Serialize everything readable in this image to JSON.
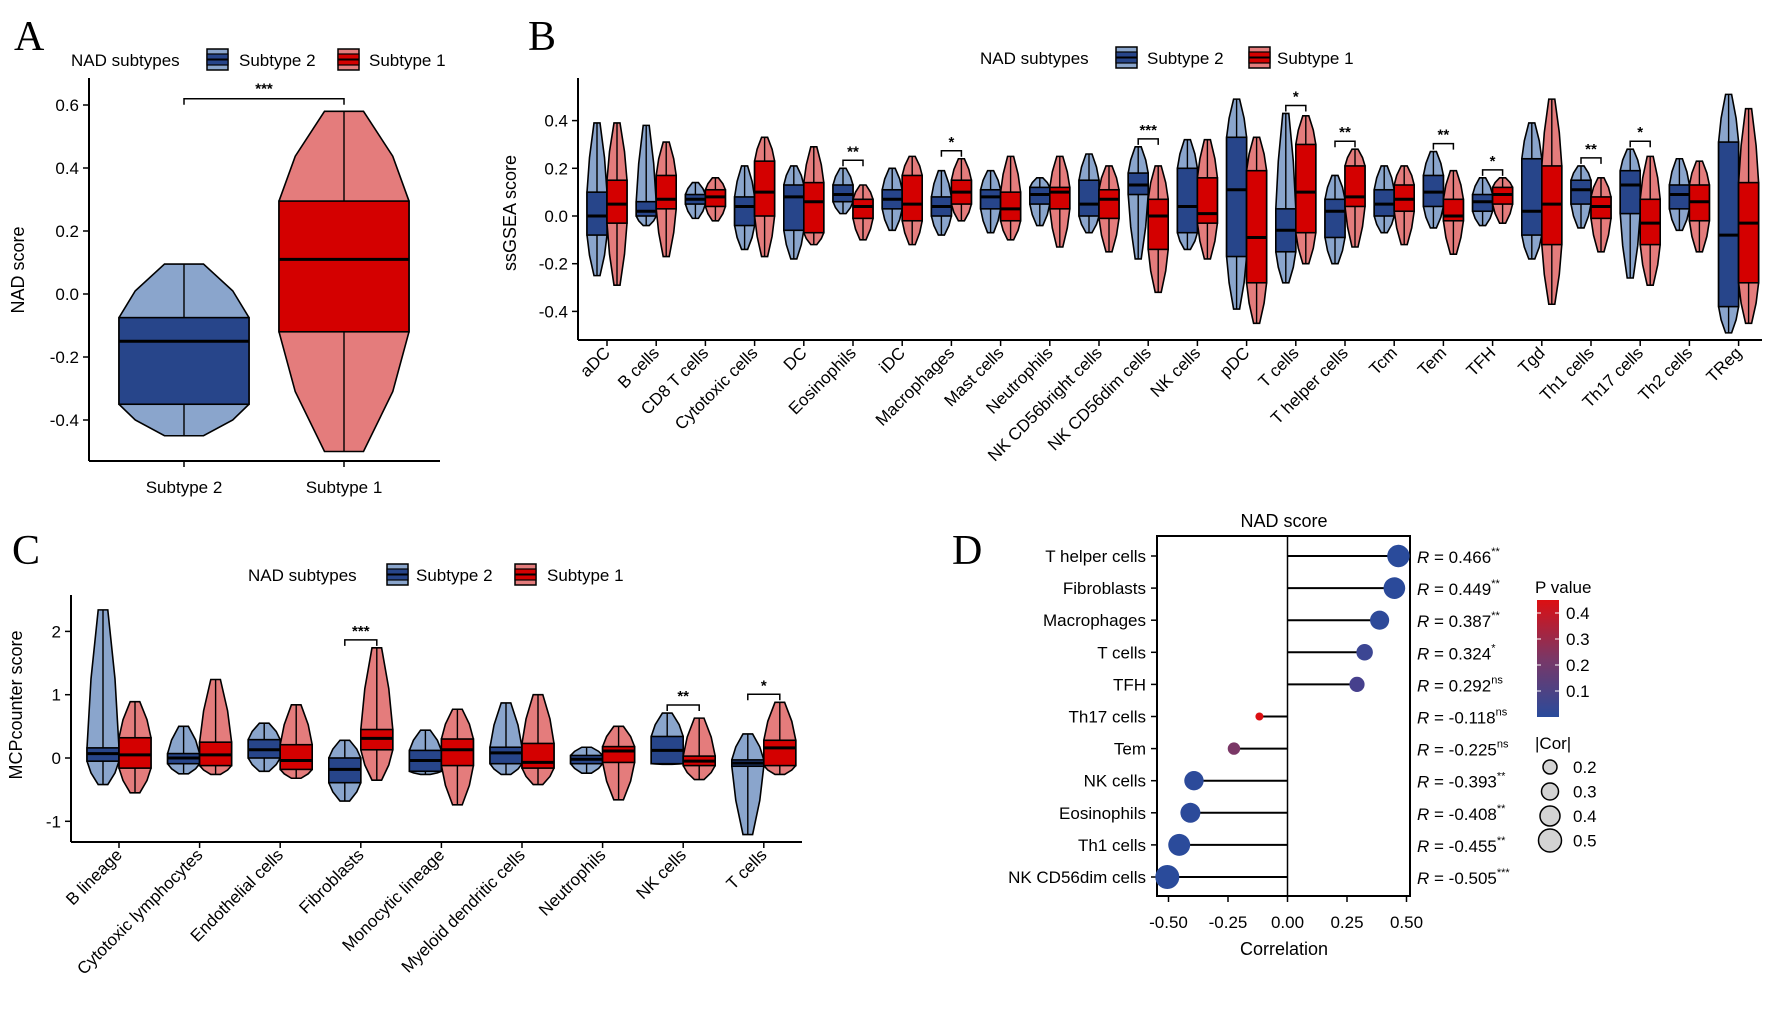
{
  "panel_labels": {
    "A": "A",
    "B": "B",
    "C": "C",
    "D": "D"
  },
  "legend": {
    "title": "NAD subtypes",
    "items": [
      "Subtype 2",
      "Subtype 1"
    ]
  },
  "colors": {
    "Subtype 2": {
      "dark": "#27458a",
      "light": "#8aa5cc"
    },
    "Subtype 1": {
      "dark": "#d40000",
      "light": "#e47c7c"
    },
    "p_low": "#2a4b9b",
    "p_high": "#dc0f12",
    "size_legend_fill": "#d3d3d3"
  },
  "chart_data": [
    {
      "panel": "A",
      "type": "box-violin",
      "ylabel": "NAD score",
      "yticks": [
        "0.6",
        "0.4",
        "0.2",
        "0.0",
        "-0.2",
        "-0.4"
      ],
      "ylim": [
        -0.5,
        0.65
      ],
      "categories": [
        "Subtype 2",
        "Subtype 1"
      ],
      "series": [
        {
          "name": "Subtype 2",
          "stats": [
            [
              -0.45,
              -0.35,
              -0.15,
              -0.075,
              0.095
            ],
            null
          ]
        },
        {
          "name": "Subtype 1",
          "stats": [
            null,
            [
              -0.5,
              -0.12,
              0.11,
              0.295,
              0.58
            ]
          ]
        }
      ],
      "significance": [
        {
          "between": [
            "Subtype 2",
            "Subtype 1"
          ],
          "label": "***"
        }
      ]
    },
    {
      "panel": "B",
      "type": "box-violin",
      "ylabel": "ssGSEA score",
      "yticks": [
        "0.4",
        "0.2",
        "0.0",
        "-0.2",
        "-0.4"
      ],
      "ylim": [
        -0.52,
        0.58
      ],
      "categories": [
        "aDC",
        "B cells",
        "CD8 T cells",
        "Cytotoxic cells",
        "DC",
        "Eosinophils",
        "iDC",
        "Macrophages",
        "Mast cells",
        "Neutrophils",
        "NK CD56bright cells",
        "NK CD56dim cells",
        "NK cells",
        "pDC",
        "T cells",
        "T helper cells",
        "Tcm",
        "Tem",
        "TFH",
        "Tgd",
        "Th1 cells",
        "Th17 cells",
        "Th2 cells",
        "TReg"
      ],
      "series": [
        {
          "name": "Subtype 2",
          "stats": [
            [
              -0.25,
              -0.08,
              0.0,
              0.1,
              0.39
            ],
            [
              -0.04,
              0.0,
              0.02,
              0.06,
              0.38
            ],
            [
              -0.01,
              0.05,
              0.07,
              0.09,
              0.14
            ],
            [
              -0.14,
              -0.04,
              0.04,
              0.08,
              0.21
            ],
            [
              -0.18,
              -0.06,
              0.08,
              0.13,
              0.21
            ],
            [
              0.01,
              0.06,
              0.09,
              0.13,
              0.2
            ],
            [
              -0.06,
              0.03,
              0.07,
              0.11,
              0.2
            ],
            [
              -0.08,
              0.0,
              0.04,
              0.08,
              0.19
            ],
            [
              -0.07,
              0.03,
              0.08,
              0.11,
              0.19
            ],
            [
              -0.04,
              0.05,
              0.09,
              0.12,
              0.16
            ],
            [
              -0.07,
              0.0,
              0.05,
              0.15,
              0.26
            ],
            [
              -0.18,
              0.09,
              0.13,
              0.18,
              0.29
            ],
            [
              -0.14,
              -0.07,
              0.04,
              0.2,
              0.32
            ],
            [
              -0.39,
              -0.17,
              0.11,
              0.33,
              0.49
            ],
            [
              -0.28,
              -0.15,
              -0.06,
              0.03,
              0.43
            ],
            [
              -0.2,
              -0.09,
              0.02,
              0.07,
              0.17
            ],
            [
              -0.07,
              0.0,
              0.05,
              0.11,
              0.21
            ],
            [
              -0.05,
              0.04,
              0.1,
              0.17,
              0.27
            ],
            [
              -0.04,
              0.02,
              0.06,
              0.09,
              0.16
            ],
            [
              -0.18,
              -0.08,
              0.02,
              0.24,
              0.39
            ],
            [
              -0.05,
              0.05,
              0.11,
              0.15,
              0.21
            ],
            [
              -0.26,
              0.01,
              0.13,
              0.19,
              0.28
            ],
            [
              -0.06,
              0.03,
              0.09,
              0.13,
              0.24
            ],
            [
              -0.49,
              -0.38,
              -0.08,
              0.31,
              0.51
            ]
          ]
        },
        {
          "name": "Subtype 1",
          "stats": [
            [
              -0.29,
              -0.03,
              0.05,
              0.15,
              0.39
            ],
            [
              -0.17,
              0.03,
              0.07,
              0.17,
              0.31
            ],
            [
              -0.02,
              0.04,
              0.08,
              0.11,
              0.16
            ],
            [
              -0.17,
              0.0,
              0.1,
              0.23,
              0.33
            ],
            [
              -0.12,
              -0.07,
              0.06,
              0.14,
              0.29
            ],
            [
              -0.1,
              -0.01,
              0.04,
              0.07,
              0.13
            ],
            [
              -0.12,
              -0.02,
              0.05,
              0.17,
              0.25
            ],
            [
              -0.02,
              0.05,
              0.1,
              0.15,
              0.24
            ],
            [
              -0.1,
              -0.02,
              0.03,
              0.1,
              0.25
            ],
            [
              -0.13,
              0.03,
              0.1,
              0.12,
              0.25
            ],
            [
              -0.15,
              -0.01,
              0.07,
              0.11,
              0.21
            ],
            [
              -0.32,
              -0.14,
              0.0,
              0.07,
              0.21
            ],
            [
              -0.18,
              -0.03,
              0.01,
              0.16,
              0.32
            ],
            [
              -0.45,
              -0.28,
              -0.09,
              0.19,
              0.33
            ],
            [
              -0.2,
              -0.07,
              0.1,
              0.3,
              0.42
            ],
            [
              -0.13,
              0.04,
              0.08,
              0.21,
              0.28
            ],
            [
              -0.12,
              0.02,
              0.07,
              0.13,
              0.21
            ],
            [
              -0.16,
              -0.02,
              0.0,
              0.07,
              0.19
            ],
            [
              -0.03,
              0.05,
              0.09,
              0.12,
              0.16
            ],
            [
              -0.37,
              -0.12,
              0.05,
              0.21,
              0.49
            ],
            [
              -0.15,
              -0.01,
              0.04,
              0.08,
              0.16
            ],
            [
              -0.29,
              -0.12,
              -0.03,
              0.07,
              0.25
            ],
            [
              -0.15,
              -0.02,
              0.06,
              0.13,
              0.23
            ],
            [
              -0.45,
              -0.28,
              -0.03,
              0.14,
              0.45
            ]
          ]
        }
      ],
      "significance": [
        "",
        "",
        "",
        "",
        "",
        "**",
        "",
        "*",
        "",
        "",
        "",
        "***",
        "",
        "",
        "*",
        "**",
        "",
        "**",
        "*",
        "",
        "**",
        "*",
        "",
        ""
      ]
    },
    {
      "panel": "C",
      "type": "box-violin",
      "ylabel": "MCPcounter score",
      "yticks": [
        "2",
        "1",
        "0",
        "-1"
      ],
      "ylim": [
        -1.3,
        2.5
      ],
      "categories": [
        "B lineage",
        "Cytotoxic lymphocytes",
        "Endothelial cells",
        "Fibroblasts",
        "Monocytic lineage",
        "Myeloid dendritic cells",
        "Neutrophils",
        "NK cells",
        "T cells"
      ],
      "series": [
        {
          "name": "Subtype 2",
          "stats": [
            [
              -0.42,
              -0.05,
              0.07,
              0.16,
              2.34
            ],
            [
              -0.25,
              -0.09,
              0.0,
              0.07,
              0.5
            ],
            [
              -0.21,
              0.0,
              0.13,
              0.29,
              0.55
            ],
            [
              -0.68,
              -0.39,
              -0.18,
              0.0,
              0.28
            ],
            [
              -0.26,
              -0.21,
              -0.04,
              0.12,
              0.44
            ],
            [
              -0.26,
              -0.09,
              0.08,
              0.17,
              0.87
            ],
            [
              -0.24,
              -0.09,
              -0.02,
              0.04,
              0.17
            ],
            [
              -0.1,
              -0.09,
              0.12,
              0.34,
              0.71
            ],
            [
              -1.21,
              -0.13,
              -0.08,
              -0.03,
              0.38
            ]
          ]
        },
        {
          "name": "Subtype 1",
          "stats": [
            [
              -0.55,
              -0.16,
              0.05,
              0.32,
              0.89
            ],
            [
              -0.26,
              -0.12,
              0.05,
              0.25,
              1.24
            ],
            [
              -0.32,
              -0.18,
              -0.04,
              0.21,
              0.84
            ],
            [
              -0.35,
              0.13,
              0.31,
              0.45,
              1.74
            ],
            [
              -0.74,
              -0.12,
              0.13,
              0.3,
              0.77
            ],
            [
              -0.42,
              -0.16,
              -0.07,
              0.23,
              1.0
            ],
            [
              -0.66,
              -0.07,
              0.11,
              0.18,
              0.5
            ],
            [
              -0.34,
              -0.12,
              -0.05,
              0.03,
              0.63
            ],
            [
              -0.26,
              -0.12,
              0.16,
              0.28,
              0.88
            ]
          ]
        }
      ],
      "significance": [
        "",
        "",
        "",
        "***",
        "",
        "",
        "",
        "**",
        "*"
      ]
    },
    {
      "panel": "D",
      "type": "lollipop",
      "title": "NAD score",
      "xlabel": "Correlation",
      "xlim": [
        -0.55,
        0.55
      ],
      "xticks": [
        "-0.50",
        "-0.25",
        "0.00",
        "0.25",
        "0.50"
      ],
      "categories": [
        "T helper cells",
        "Fibroblasts",
        "Macrophages",
        "T cells",
        "TFH",
        "Th17 cells",
        "Tem",
        "NK cells",
        "Eosinophils",
        "Th1 cells",
        "NK CD56dim cells"
      ],
      "values": [
        0.466,
        0.449,
        0.387,
        0.324,
        0.292,
        -0.118,
        -0.225,
        -0.393,
        -0.408,
        -0.455,
        -0.505
      ],
      "r_symbol": "R",
      "r_equals": " = ",
      "value_labels": [
        "0.466",
        "0.449",
        "0.387",
        "0.324",
        "0.292",
        "-0.118",
        "-0.225",
        "-0.393",
        "-0.408",
        "-0.455",
        "-0.505"
      ],
      "significance": [
        "**",
        "**",
        "**",
        "*",
        "ns",
        "ns",
        "ns",
        "**",
        "**",
        "**",
        "***"
      ],
      "point_colors": [
        "#2a4b9b",
        "#2b4a9a",
        "#2e4a99",
        "#3c4693",
        "#46408d",
        "#dc0f12",
        "#7a3766",
        "#2c4a9a",
        "#2c4a9a",
        "#2b4b9b",
        "#2a4b9b"
      ],
      "color_legend": {
        "title": "P value",
        "ticks": [
          "0.4",
          "0.3",
          "0.2",
          "0.1"
        ]
      },
      "size_legend": {
        "title": "|Cor|",
        "ticks": [
          "0.2",
          "0.3",
          "0.4",
          "0.5"
        ]
      }
    }
  ]
}
